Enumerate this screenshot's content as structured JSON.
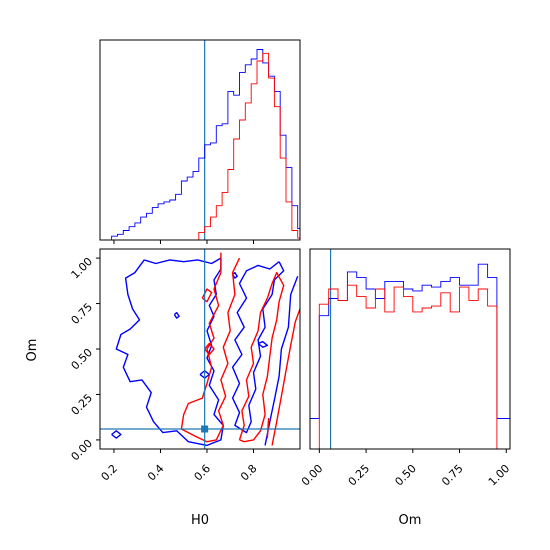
{
  "colors": {
    "samples_a": "#0000ff",
    "samples_b": "#ff0000",
    "truth": "#1f77b4",
    "frame": "#000000",
    "background": "#ffffff"
  },
  "labels": {
    "x_left": "H0",
    "y_left": "Om",
    "x_right": "Om"
  },
  "chart_data": [
    {
      "type": "histogram",
      "panel": "H0 marginal (top-left)",
      "x_range": [
        0.14,
        1.0
      ],
      "y_range": [
        0,
        1.05
      ],
      "y_ticks_shown": false,
      "x_ticklabels_shown": false,
      "x_ticks": [
        0.2,
        0.4,
        0.6,
        0.8
      ],
      "truth_x": 0.59,
      "bin_edges": [
        0.14,
        0.165,
        0.19,
        0.215,
        0.24,
        0.265,
        0.29,
        0.315,
        0.34,
        0.365,
        0.39,
        0.415,
        0.44,
        0.465,
        0.49,
        0.515,
        0.54,
        0.565,
        0.59,
        0.615,
        0.64,
        0.665,
        0.69,
        0.715,
        0.74,
        0.765,
        0.79,
        0.815,
        0.84,
        0.865,
        0.89,
        0.915,
        0.94,
        0.965,
        0.99,
        1.0
      ],
      "series": [
        {
          "color": "blue",
          "values": [
            0.0,
            0.0,
            0.02,
            0.03,
            0.05,
            0.07,
            0.09,
            0.12,
            0.14,
            0.17,
            0.19,
            0.2,
            0.21,
            0.24,
            0.31,
            0.33,
            0.36,
            0.43,
            0.5,
            0.51,
            0.6,
            0.61,
            0.78,
            0.76,
            0.88,
            0.92,
            0.95,
            1.0,
            0.93,
            0.86,
            0.78,
            0.55,
            0.38,
            0.18,
            0.06
          ]
        },
        {
          "color": "red",
          "values": [
            0,
            0,
            0,
            0,
            0,
            0,
            0,
            0,
            0,
            0,
            0,
            0,
            0,
            0,
            0,
            0,
            0,
            0.04,
            0.07,
            0.12,
            0.18,
            0.25,
            0.37,
            0.53,
            0.63,
            0.72,
            0.82,
            0.94,
            0.98,
            0.85,
            0.7,
            0.43,
            0.2,
            0.05,
            0.01
          ]
        }
      ]
    },
    {
      "type": "contour",
      "panel": "H0 vs Om joint (bottom-left)",
      "xlabel": "H0",
      "ylabel": "Om",
      "x_range": [
        0.14,
        1.0
      ],
      "y_range": [
        -0.05,
        1.05
      ],
      "x_ticks": [
        0.2,
        0.4,
        0.6,
        0.8
      ],
      "x_ticklabels": [
        "0.2",
        "0.4",
        "0.6",
        "0.8"
      ],
      "y_ticks": [
        0.0,
        0.25,
        0.5,
        0.75,
        1.0
      ],
      "y_ticklabels": [
        "0.00",
        "0.25",
        "0.50",
        "0.75",
        "1.00"
      ],
      "truth": {
        "x": 0.59,
        "y": 0.06
      },
      "series": [
        {
          "color": "blue",
          "contours": [
            [
              [
                0.33,
                0.99
              ],
              [
                0.38,
                0.97
              ],
              [
                0.44,
                0.99
              ],
              [
                0.5,
                0.98
              ],
              [
                0.56,
                0.99
              ],
              [
                0.62,
                0.97
              ],
              [
                0.66,
                1.0
              ],
              [
                0.66,
                0.94
              ],
              [
                0.63,
                0.88
              ],
              [
                0.64,
                0.8
              ],
              [
                0.61,
                0.74
              ],
              [
                0.63,
                0.68
              ],
              [
                0.6,
                0.6
              ],
              [
                0.62,
                0.52
              ],
              [
                0.6,
                0.45
              ],
              [
                0.63,
                0.38
              ],
              [
                0.61,
                0.3
              ],
              [
                0.65,
                0.22
              ],
              [
                0.63,
                0.14
              ],
              [
                0.67,
                0.08
              ],
              [
                0.66,
                0.0
              ],
              [
                0.6,
                -0.03
              ],
              [
                0.52,
                -0.01
              ],
              [
                0.47,
                0.05
              ],
              [
                0.41,
                0.04
              ],
              [
                0.37,
                0.1
              ],
              [
                0.34,
                0.18
              ],
              [
                0.36,
                0.26
              ],
              [
                0.32,
                0.33
              ],
              [
                0.27,
                0.32
              ],
              [
                0.24,
                0.4
              ],
              [
                0.26,
                0.47
              ],
              [
                0.21,
                0.5
              ],
              [
                0.23,
                0.58
              ],
              [
                0.27,
                0.61
              ],
              [
                0.31,
                0.66
              ],
              [
                0.28,
                0.72
              ],
              [
                0.26,
                0.8
              ],
              [
                0.25,
                0.89
              ],
              [
                0.29,
                0.92
              ],
              [
                0.33,
                0.99
              ]
            ],
            [
              [
                0.91,
                0.98
              ],
              [
                0.87,
                0.94
              ],
              [
                0.82,
                0.96
              ],
              [
                0.77,
                0.93
              ],
              [
                0.74,
                0.86
              ],
              [
                0.77,
                0.78
              ],
              [
                0.73,
                0.7
              ],
              [
                0.76,
                0.62
              ],
              [
                0.72,
                0.55
              ],
              [
                0.75,
                0.47
              ],
              [
                0.71,
                0.4
              ],
              [
                0.74,
                0.31
              ],
              [
                0.71,
                0.23
              ],
              [
                0.74,
                0.15
              ],
              [
                0.72,
                0.08
              ],
              [
                0.77,
                0.04
              ],
              [
                0.79,
                0.1
              ],
              [
                0.78,
                0.19
              ],
              [
                0.81,
                0.28
              ],
              [
                0.8,
                0.37
              ],
              [
                0.83,
                0.46
              ],
              [
                0.82,
                0.55
              ],
              [
                0.85,
                0.62
              ],
              [
                0.84,
                0.72
              ],
              [
                0.88,
                0.8
              ],
              [
                0.89,
                0.88
              ],
              [
                0.93,
                0.93
              ],
              [
                0.91,
                0.98
              ]
            ],
            [
              [
                0.85,
                -0.03
              ],
              [
                0.87,
                0.1
              ],
              [
                0.89,
                0.22
              ],
              [
                0.91,
                0.35
              ],
              [
                0.92,
                0.5
              ],
              [
                0.95,
                0.62
              ],
              [
                0.96,
                0.8
              ],
              [
                0.99,
                0.9
              ]
            ],
            [
              [
                0.19,
                0.03
              ],
              [
                0.21,
                0.05
              ],
              [
                0.23,
                0.03
              ],
              [
                0.21,
                0.01
              ],
              [
                0.19,
                0.03
              ]
            ],
            [
              [
                0.46,
                0.69
              ],
              [
                0.47,
                0.7
              ],
              [
                0.48,
                0.68
              ],
              [
                0.47,
                0.67
              ],
              [
                0.46,
                0.69
              ]
            ],
            [
              [
                0.57,
                0.36
              ],
              [
                0.59,
                0.38
              ],
              [
                0.61,
                0.36
              ],
              [
                0.59,
                0.34
              ],
              [
                0.57,
                0.36
              ]
            ],
            [
              [
                0.71,
                0.91
              ],
              [
                0.72,
                0.92
              ],
              [
                0.73,
                0.9
              ],
              [
                0.72,
                0.89
              ],
              [
                0.71,
                0.91
              ]
            ],
            [
              [
                0.82,
                0.53
              ],
              [
                0.84,
                0.54
              ],
              [
                0.86,
                0.52
              ],
              [
                0.84,
                0.51
              ],
              [
                0.82,
                0.53
              ]
            ]
          ]
        },
        {
          "color": "red",
          "contours": [
            [
              [
                0.66,
                1.03
              ],
              [
                0.66,
                0.92
              ],
              [
                0.63,
                0.83
              ],
              [
                0.65,
                0.74
              ],
              [
                0.61,
                0.64
              ],
              [
                0.63,
                0.56
              ],
              [
                0.6,
                0.5
              ],
              [
                0.62,
                0.4
              ],
              [
                0.6,
                0.31
              ],
              [
                0.58,
                0.23
              ],
              [
                0.52,
                0.2
              ],
              [
                0.5,
                0.14
              ],
              [
                0.49,
                0.06
              ],
              [
                0.55,
                0.02
              ],
              [
                0.6,
                -0.01
              ],
              [
                0.64,
                0.0
              ],
              [
                0.67,
                0.08
              ],
              [
                0.65,
                0.16
              ],
              [
                0.68,
                0.24
              ],
              [
                0.66,
                0.33
              ],
              [
                0.69,
                0.42
              ],
              [
                0.67,
                0.51
              ],
              [
                0.7,
                0.6
              ],
              [
                0.69,
                0.7
              ],
              [
                0.72,
                0.8
              ],
              [
                0.71,
                0.92
              ],
              [
                0.74,
                1.0
              ]
            ],
            [
              [
                0.74,
                0.0
              ],
              [
                0.76,
                0.08
              ],
              [
                0.75,
                0.16
              ],
              [
                0.78,
                0.24
              ],
              [
                0.77,
                0.33
              ],
              [
                0.8,
                0.42
              ],
              [
                0.79,
                0.51
              ],
              [
                0.82,
                0.6
              ],
              [
                0.83,
                0.7
              ],
              [
                0.86,
                0.78
              ],
              [
                0.88,
                0.86
              ],
              [
                0.9,
                0.92
              ],
              [
                0.93,
                0.85
              ],
              [
                0.91,
                0.76
              ],
              [
                0.9,
                0.66
              ],
              [
                0.88,
                0.56
              ],
              [
                0.87,
                0.46
              ],
              [
                0.86,
                0.35
              ],
              [
                0.84,
                0.25
              ],
              [
                0.85,
                0.14
              ],
              [
                0.83,
                0.05
              ],
              [
                0.8,
                0.0
              ],
              [
                0.76,
                -0.01
              ],
              [
                0.74,
                0.0
              ]
            ],
            [
              [
                0.88,
                -0.03
              ],
              [
                0.9,
                0.1
              ],
              [
                0.92,
                0.24
              ],
              [
                0.94,
                0.38
              ],
              [
                0.96,
                0.52
              ],
              [
                0.98,
                0.65
              ],
              [
                1.0,
                0.72
              ]
            ],
            [
              [
                0.58,
                0.78
              ],
              [
                0.6,
                0.83
              ],
              [
                0.62,
                0.81
              ],
              [
                0.6,
                0.76
              ],
              [
                0.58,
                0.78
              ]
            ],
            [
              [
                0.59,
                0.5
              ],
              [
                0.61,
                0.53
              ],
              [
                0.63,
                0.5
              ],
              [
                0.61,
                0.47
              ],
              [
                0.59,
                0.5
              ]
            ],
            [
              [
                0.86,
                0.01
              ],
              [
                0.865,
                0.12
              ]
            ]
          ]
        }
      ]
    },
    {
      "type": "histogram",
      "panel": "Om marginal (bottom-right)",
      "xlabel": "Om",
      "x_range": [
        -0.05,
        1.02
      ],
      "y_range": [
        0,
        1.05
      ],
      "y_ticks_shown": false,
      "x_ticks": [
        0.0,
        0.25,
        0.5,
        0.75,
        1.0
      ],
      "x_ticklabels": [
        "0.00",
        "0.25",
        "0.50",
        "0.75",
        "1.00"
      ],
      "truth_x": 0.06,
      "bin_edges": [
        -0.05,
        0.0,
        0.05,
        0.1,
        0.15,
        0.2,
        0.25,
        0.3,
        0.35,
        0.4,
        0.45,
        0.5,
        0.55,
        0.6,
        0.65,
        0.7,
        0.75,
        0.8,
        0.85,
        0.9,
        0.95,
        1.0,
        1.02
      ],
      "series": [
        {
          "color": "blue",
          "values": [
            0.16,
            0.7,
            0.79,
            0.78,
            0.93,
            0.9,
            0.84,
            0.79,
            0.88,
            0.88,
            0.84,
            0.83,
            0.86,
            0.85,
            0.88,
            0.9,
            0.86,
            0.86,
            0.97,
            0.9,
            0.16,
            0.16
          ]
        },
        {
          "color": "red",
          "values": [
            0.0,
            0.76,
            0.84,
            0.78,
            0.86,
            0.8,
            0.74,
            0.84,
            0.72,
            0.85,
            0.8,
            0.72,
            0.74,
            0.75,
            0.82,
            0.72,
            0.85,
            0.78,
            0.84,
            0.75,
            0.0,
            0.0
          ]
        }
      ]
    }
  ]
}
